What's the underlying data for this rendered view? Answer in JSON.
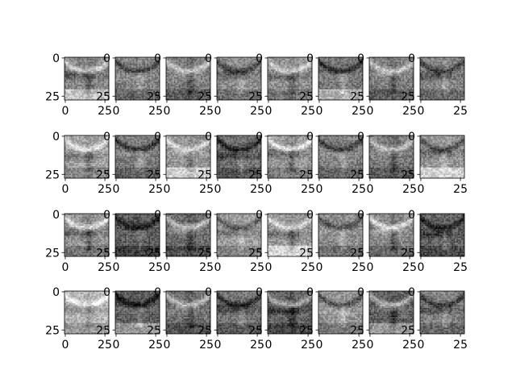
{
  "chart_data": {
    "type": "heatmap",
    "description_count": 32,
    "grid": {
      "rows": 4,
      "cols": 8
    },
    "colormap": "gray",
    "image_size": [
      28,
      28
    ],
    "xlim": [
      -0.5,
      27.5
    ],
    "ylim": [
      27.5,
      -0.5
    ],
    "x_ticks": [
      0,
      25
    ],
    "y_ticks": [
      0,
      25
    ],
    "x_tick_labels": [
      "0",
      "25"
    ],
    "y_tick_labels": [
      "0",
      "25"
    ],
    "title": "",
    "xlabel": "",
    "ylabel": "",
    "panels": [
      {
        "base": 0.5,
        "contrast": 0.35
      },
      {
        "base": 0.48,
        "contrast": 0.3
      },
      {
        "base": 0.45,
        "contrast": 0.38
      },
      {
        "base": 0.52,
        "contrast": 0.32
      },
      {
        "base": 0.55,
        "contrast": 0.3
      },
      {
        "base": 0.42,
        "contrast": 0.36
      },
      {
        "base": 0.46,
        "contrast": 0.33
      },
      {
        "base": 0.5,
        "contrast": 0.34
      },
      {
        "base": 0.62,
        "contrast": 0.3
      },
      {
        "base": 0.45,
        "contrast": 0.34
      },
      {
        "base": 0.55,
        "contrast": 0.32
      },
      {
        "base": 0.4,
        "contrast": 0.36
      },
      {
        "base": 0.58,
        "contrast": 0.4
      },
      {
        "base": 0.47,
        "contrast": 0.33
      },
      {
        "base": 0.44,
        "contrast": 0.35
      },
      {
        "base": 0.56,
        "contrast": 0.31
      },
      {
        "base": 0.55,
        "contrast": 0.35
      },
      {
        "base": 0.3,
        "contrast": 0.3
      },
      {
        "base": 0.38,
        "contrast": 0.38
      },
      {
        "base": 0.6,
        "contrast": 0.28
      },
      {
        "base": 0.58,
        "contrast": 0.3
      },
      {
        "base": 0.52,
        "contrast": 0.3
      },
      {
        "base": 0.5,
        "contrast": 0.4
      },
      {
        "base": 0.35,
        "contrast": 0.32
      },
      {
        "base": 0.7,
        "contrast": 0.3
      },
      {
        "base": 0.32,
        "contrast": 0.36
      },
      {
        "base": 0.4,
        "contrast": 0.35
      },
      {
        "base": 0.42,
        "contrast": 0.34
      },
      {
        "base": 0.35,
        "contrast": 0.33
      },
      {
        "base": 0.55,
        "contrast": 0.32
      },
      {
        "base": 0.33,
        "contrast": 0.35
      },
      {
        "base": 0.48,
        "contrast": 0.33
      }
    ]
  }
}
